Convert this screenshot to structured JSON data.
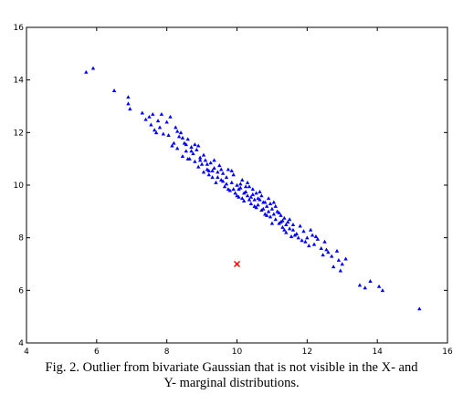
{
  "chart_data": {
    "type": "scatter",
    "title": "",
    "xlabel": "",
    "ylabel": "",
    "xlim": [
      4,
      16
    ],
    "ylim": [
      4,
      16
    ],
    "xticks": [
      4,
      6,
      8,
      10,
      12,
      14,
      16
    ],
    "yticks": [
      4,
      6,
      8,
      10,
      12,
      14,
      16
    ],
    "grid": false,
    "series": [
      {
        "marker": "triangle",
        "color": "#0000ff",
        "points": [
          [
            5.7,
            14.3
          ],
          [
            5.9,
            14.45
          ],
          [
            6.5,
            13.6
          ],
          [
            6.9,
            13.35
          ],
          [
            6.9,
            13.1
          ],
          [
            6.95,
            12.9
          ],
          [
            7.3,
            12.75
          ],
          [
            7.4,
            12.5
          ],
          [
            7.5,
            12.6
          ],
          [
            7.55,
            12.3
          ],
          [
            7.6,
            12.7
          ],
          [
            7.65,
            12.1
          ],
          [
            7.75,
            12.45
          ],
          [
            7.8,
            12.2
          ],
          [
            7.85,
            12.7
          ],
          [
            7.9,
            11.95
          ],
          [
            8.0,
            12.4
          ],
          [
            8.05,
            11.9
          ],
          [
            8.1,
            12.6
          ],
          [
            8.2,
            11.6
          ],
          [
            8.25,
            12.2
          ],
          [
            8.3,
            11.4
          ],
          [
            8.35,
            11.85
          ],
          [
            8.4,
            12.0
          ],
          [
            8.45,
            11.1
          ],
          [
            8.5,
            11.6
          ],
          [
            8.55,
            11.3
          ],
          [
            8.6,
            11.75
          ],
          [
            8.65,
            11.0
          ],
          [
            8.7,
            11.45
          ],
          [
            8.75,
            11.2
          ],
          [
            8.8,
            10.9
          ],
          [
            8.85,
            11.35
          ],
          [
            8.9,
            10.7
          ],
          [
            8.95,
            11.05
          ],
          [
            9.0,
            10.8
          ],
          [
            9.05,
            10.5
          ],
          [
            9.1,
            10.95
          ],
          [
            9.15,
            10.6
          ],
          [
            9.2,
            10.4
          ],
          [
            9.25,
            10.85
          ],
          [
            9.3,
            10.3
          ],
          [
            9.35,
            10.65
          ],
          [
            9.4,
            10.1
          ],
          [
            9.45,
            10.5
          ],
          [
            9.5,
            10.75
          ],
          [
            9.55,
            10.2
          ],
          [
            9.6,
            10.45
          ],
          [
            9.65,
            9.95
          ],
          [
            9.7,
            10.3
          ],
          [
            9.75,
            10.6
          ],
          [
            9.8,
            9.8
          ],
          [
            9.85,
            10.1
          ],
          [
            9.9,
            10.4
          ],
          [
            9.95,
            9.7
          ],
          [
            10.0,
            10.0
          ],
          [
            10.05,
            9.55
          ],
          [
            10.1,
            9.9
          ],
          [
            10.15,
            10.2
          ],
          [
            10.2,
            9.4
          ],
          [
            10.25,
            9.75
          ],
          [
            10.3,
            9.6
          ],
          [
            10.35,
            9.95
          ],
          [
            10.4,
            9.3
          ],
          [
            10.45,
            9.65
          ],
          [
            10.5,
            9.45
          ],
          [
            10.55,
            9.15
          ],
          [
            10.6,
            9.5
          ],
          [
            10.65,
            9.75
          ],
          [
            10.7,
            9.05
          ],
          [
            10.75,
            9.35
          ],
          [
            10.8,
            8.9
          ],
          [
            10.85,
            9.2
          ],
          [
            10.9,
            9.5
          ],
          [
            10.95,
            8.8
          ],
          [
            11.0,
            9.1
          ],
          [
            11.05,
            9.35
          ],
          [
            11.1,
            8.7
          ],
          [
            11.15,
            9.0
          ],
          [
            11.2,
            8.55
          ],
          [
            11.25,
            8.85
          ],
          [
            11.3,
            8.4
          ],
          [
            11.35,
            8.75
          ],
          [
            11.4,
            8.2
          ],
          [
            11.45,
            8.6
          ],
          [
            11.5,
            8.35
          ],
          [
            11.55,
            8.05
          ],
          [
            11.6,
            8.5
          ],
          [
            11.7,
            8.15
          ],
          [
            11.8,
            8.45
          ],
          [
            11.85,
            7.9
          ],
          [
            11.9,
            8.25
          ],
          [
            12.0,
            8.0
          ],
          [
            12.1,
            8.3
          ],
          [
            12.2,
            7.75
          ],
          [
            12.3,
            7.95
          ],
          [
            12.4,
            7.6
          ],
          [
            12.5,
            7.85
          ],
          [
            12.6,
            7.45
          ],
          [
            12.7,
            7.3
          ],
          [
            12.75,
            6.9
          ],
          [
            12.85,
            7.5
          ],
          [
            12.9,
            7.15
          ],
          [
            12.95,
            6.75
          ],
          [
            13.0,
            7.0
          ],
          [
            13.1,
            7.2
          ],
          [
            13.5,
            6.2
          ],
          [
            13.65,
            6.1
          ],
          [
            13.8,
            6.35
          ],
          [
            14.05,
            6.15
          ],
          [
            14.15,
            6.0
          ],
          [
            15.2,
            5.3
          ],
          [
            7.7,
            12.0
          ],
          [
            8.15,
            11.5
          ],
          [
            8.6,
            11.0
          ],
          [
            8.9,
            11.5
          ],
          [
            9.2,
            10.55
          ],
          [
            9.35,
            10.95
          ],
          [
            9.6,
            10.15
          ],
          [
            9.75,
            9.85
          ],
          [
            9.85,
            10.55
          ],
          [
            10.05,
            9.85
          ],
          [
            10.1,
            10.05
          ],
          [
            10.2,
            9.7
          ],
          [
            10.3,
            10.1
          ],
          [
            10.35,
            9.45
          ],
          [
            10.45,
            9.85
          ],
          [
            10.55,
            9.7
          ],
          [
            10.6,
            9.25
          ],
          [
            10.7,
            9.6
          ],
          [
            10.8,
            9.35
          ],
          [
            10.9,
            9.0
          ],
          [
            11.0,
            8.55
          ],
          [
            11.1,
            9.2
          ],
          [
            11.2,
            8.95
          ],
          [
            11.3,
            8.65
          ],
          [
            11.4,
            8.5
          ],
          [
            11.6,
            8.3
          ],
          [
            11.75,
            8.0
          ],
          [
            12.05,
            7.7
          ],
          [
            12.25,
            8.05
          ],
          [
            12.45,
            7.35
          ],
          [
            8.3,
            12.05
          ],
          [
            8.45,
            11.8
          ],
          [
            8.55,
            11.55
          ],
          [
            8.7,
            11.3
          ],
          [
            8.8,
            11.55
          ],
          [
            8.95,
            10.95
          ],
          [
            9.05,
            11.15
          ],
          [
            9.15,
            10.8
          ],
          [
            9.3,
            10.55
          ],
          [
            9.45,
            10.3
          ],
          [
            9.55,
            10.6
          ],
          [
            9.7,
            10.05
          ],
          [
            9.9,
            9.85
          ],
          [
            10.0,
            9.6
          ],
          [
            10.15,
            9.5
          ],
          [
            10.25,
            9.95
          ],
          [
            10.4,
            9.55
          ],
          [
            10.5,
            9.2
          ],
          [
            10.65,
            9.45
          ],
          [
            10.75,
            9.1
          ],
          [
            10.85,
            8.85
          ],
          [
            10.95,
            9.3
          ],
          [
            11.05,
            8.9
          ],
          [
            11.25,
            8.6
          ],
          [
            11.35,
            8.3
          ],
          [
            11.5,
            8.7
          ],
          [
            11.65,
            8.1
          ],
          [
            11.95,
            7.85
          ],
          [
            12.15,
            8.1
          ],
          [
            12.55,
            7.55
          ]
        ]
      },
      {
        "marker": "x",
        "color": "#ff0000",
        "points": [
          [
            10.0,
            7.0
          ]
        ]
      }
    ]
  },
  "caption": {
    "line1": "Fig. 2. Outlier from bivariate Gaussian that is not visible in the X- and",
    "line2": "Y- marginal distributions."
  }
}
